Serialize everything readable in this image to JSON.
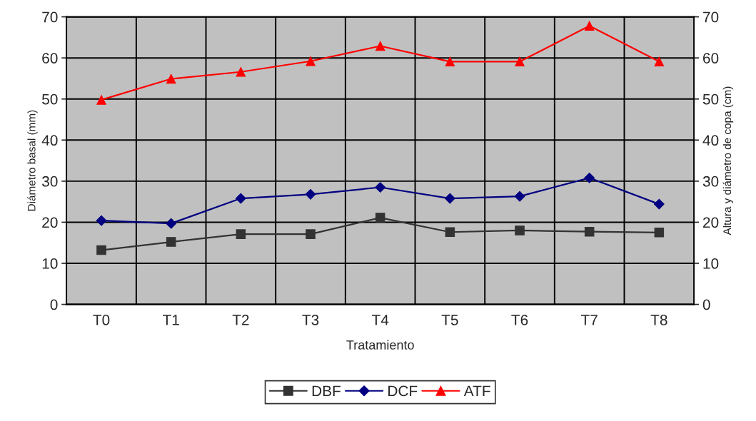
{
  "chart_data": {
    "type": "line",
    "xlabel": "Tratamiento",
    "ylabel": "Diámetro basal (mm)",
    "y2label": "Altura y diámetro de copa (cm)",
    "categories": [
      "T0",
      "T1",
      "T2",
      "T3",
      "T4",
      "T5",
      "T6",
      "T7",
      "T8"
    ],
    "series": [
      {
        "name": "DBF",
        "color": "#333333",
        "marker": "square",
        "values": [
          13.2,
          15.2,
          17.1,
          17.1,
          21.1,
          17.6,
          18.0,
          17.7,
          17.5
        ]
      },
      {
        "name": "DCF",
        "color": "#000080",
        "marker": "diamond",
        "values": [
          20.4,
          19.7,
          25.8,
          26.8,
          28.5,
          25.8,
          26.3,
          30.8,
          24.4
        ]
      },
      {
        "name": "ATF",
        "color": "#ff0000",
        "marker": "triangle",
        "values": [
          49.8,
          54.9,
          56.6,
          59.2,
          62.9,
          59.1,
          59.1,
          67.8,
          59.1
        ]
      }
    ],
    "ylim": [
      0,
      70
    ],
    "yticks": [
      0,
      10,
      20,
      30,
      40,
      50,
      60,
      70
    ],
    "y2lim": [
      0,
      70
    ],
    "y2ticks": [
      0,
      10,
      20,
      30,
      40,
      50,
      60,
      70
    ],
    "grid": true,
    "legend": "bottom",
    "line_style": "solid"
  }
}
